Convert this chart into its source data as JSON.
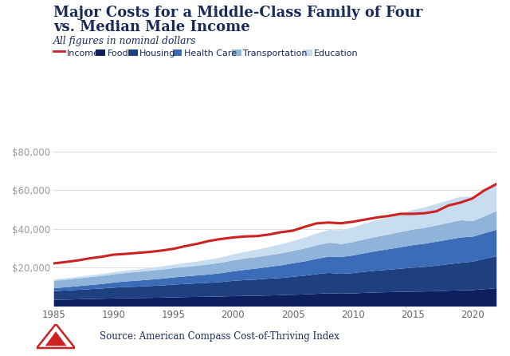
{
  "title_line1": "Major Costs for a Middle-Class Family of Four",
  "title_line2": "vs. Median Male Income",
  "subtitle": "All figures in nominal dollars",
  "source": "Source: American Compass Cost-of-Thriving Index",
  "years": [
    1985,
    1986,
    1987,
    1988,
    1989,
    1990,
    1991,
    1992,
    1993,
    1994,
    1995,
    1996,
    1997,
    1998,
    1999,
    2000,
    2001,
    2002,
    2003,
    2004,
    2005,
    2006,
    2007,
    2008,
    2009,
    2010,
    2011,
    2012,
    2013,
    2014,
    2015,
    2016,
    2017,
    2018,
    2019,
    2020,
    2021,
    2022
  ],
  "income": [
    22100,
    22800,
    23600,
    24700,
    25500,
    26600,
    27000,
    27500,
    28000,
    28700,
    29600,
    31000,
    32200,
    33700,
    34700,
    35500,
    36000,
    36200,
    37000,
    38200,
    39000,
    41000,
    42800,
    43200,
    42800,
    43600,
    44700,
    45800,
    46600,
    47700,
    47700,
    48000,
    49000,
    52000,
    53500,
    55600,
    59800,
    63000
  ],
  "food": [
    3500,
    3600,
    3750,
    3900,
    4050,
    4200,
    4300,
    4400,
    4500,
    4600,
    4750,
    4900,
    5000,
    5100,
    5200,
    5400,
    5500,
    5600,
    5750,
    5900,
    6100,
    6300,
    6600,
    6900,
    6700,
    6800,
    7100,
    7300,
    7450,
    7600,
    7700,
    7800,
    7950,
    8200,
    8400,
    8500,
    9000,
    9500
  ],
  "housing": [
    4500,
    4700,
    4900,
    5100,
    5300,
    5600,
    5800,
    5900,
    6100,
    6300,
    6600,
    6800,
    7000,
    7200,
    7500,
    7900,
    8200,
    8400,
    8700,
    8900,
    9300,
    9700,
    10200,
    10500,
    10200,
    10500,
    10900,
    11300,
    11600,
    12000,
    12400,
    12700,
    13200,
    13700,
    14200,
    14700,
    15700,
    16500
  ],
  "health_care": [
    1500,
    1700,
    1900,
    2100,
    2300,
    2600,
    2900,
    3100,
    3300,
    3500,
    3700,
    3900,
    4100,
    4300,
    4600,
    4900,
    5300,
    5700,
    6100,
    6500,
    7000,
    7400,
    7900,
    8400,
    8700,
    9100,
    9600,
    10100,
    10600,
    11100,
    11600,
    12000,
    12400,
    12700,
    13100,
    12900,
    13200,
    13700
  ],
  "transportation": [
    3800,
    3900,
    4000,
    4100,
    4200,
    4300,
    4400,
    4500,
    4600,
    4700,
    4800,
    4900,
    5000,
    5200,
    5400,
    5700,
    5900,
    5900,
    6000,
    6200,
    6400,
    6700,
    7000,
    7200,
    6700,
    6900,
    7200,
    7400,
    7600,
    7900,
    8100,
    8200,
    8400,
    8700,
    8900,
    8000,
    8700,
    9700
  ],
  "education": [
    700,
    750,
    800,
    870,
    950,
    1050,
    1150,
    1270,
    1420,
    1600,
    1780,
    1980,
    2200,
    2450,
    2720,
    3050,
    3400,
    3800,
    4200,
    4650,
    5100,
    5600,
    6100,
    6600,
    7100,
    7600,
    8100,
    8600,
    9100,
    9600,
    10100,
    10600,
    11100,
    11600,
    12100,
    12600,
    13500,
    15000
  ],
  "color_food": "#0d1f5e",
  "color_housing": "#1e4080",
  "color_health_care": "#3b6cb7",
  "color_transportation": "#8fb3d9",
  "color_education": "#c8ddf0",
  "color_income": "#cc2222",
  "ylim": [
    0,
    80000
  ],
  "yticks": [
    0,
    20000,
    40000,
    60000,
    80000
  ],
  "ytick_labels": [
    "",
    "$20,000",
    "$40,000",
    "$60,000",
    "$80,000"
  ],
  "xticks": [
    1985,
    1990,
    1995,
    2000,
    2005,
    2010,
    2015,
    2020
  ],
  "title_color": "#1a2a5a",
  "subtitle_color": "#1a2a5a"
}
